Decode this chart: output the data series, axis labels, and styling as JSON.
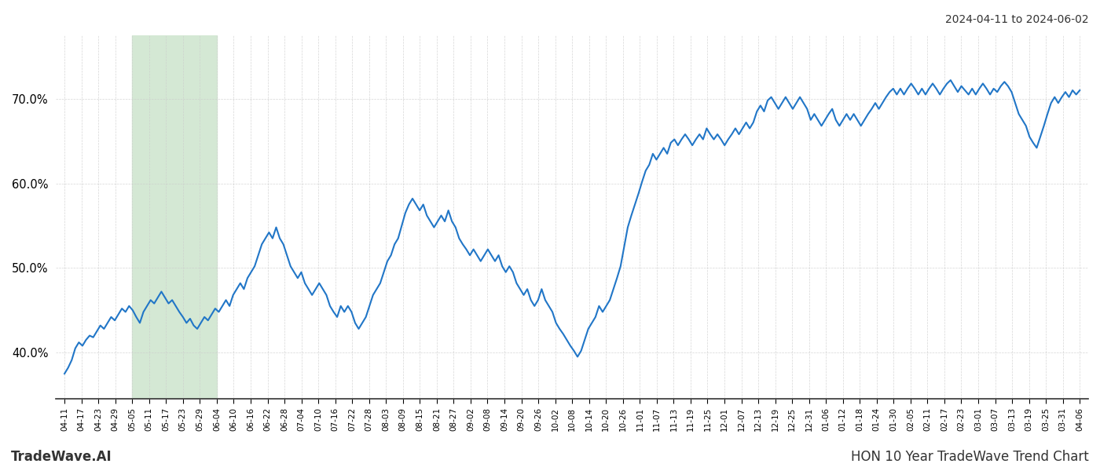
{
  "title_right": "2024-04-11 to 2024-06-02",
  "footer_left": "TradeWave.AI",
  "footer_right": "HON 10 Year TradeWave Trend Chart",
  "line_color": "#2176c7",
  "line_width": 1.5,
  "bg_color": "#ffffff",
  "grid_color": "#cccccc",
  "highlight_color": "#d4e8d4",
  "yticks": [
    0.4,
    0.5,
    0.6,
    0.7
  ],
  "ylim": [
    0.345,
    0.775
  ],
  "xlabels": [
    "04-11",
    "04-17",
    "04-23",
    "04-29",
    "05-05",
    "05-11",
    "05-17",
    "05-23",
    "05-29",
    "06-04",
    "06-10",
    "06-16",
    "06-22",
    "06-28",
    "07-04",
    "07-10",
    "07-16",
    "07-22",
    "07-28",
    "08-03",
    "08-09",
    "08-15",
    "08-21",
    "08-27",
    "09-02",
    "09-08",
    "09-14",
    "09-20",
    "09-26",
    "10-02",
    "10-08",
    "10-14",
    "10-20",
    "10-26",
    "11-01",
    "11-07",
    "11-13",
    "11-19",
    "11-25",
    "12-01",
    "12-07",
    "12-13",
    "12-19",
    "12-25",
    "12-31",
    "01-06",
    "01-12",
    "01-18",
    "01-24",
    "01-30",
    "02-05",
    "02-11",
    "02-17",
    "02-23",
    "03-01",
    "03-07",
    "03-13",
    "03-19",
    "03-25",
    "03-31",
    "04-06"
  ],
  "highlight_label_start": "05-05",
  "highlight_label_end": "06-04",
  "values": [
    37.5,
    38.2,
    39.1,
    40.5,
    41.2,
    40.8,
    41.5,
    42.0,
    41.8,
    42.5,
    43.2,
    42.8,
    43.5,
    44.2,
    43.8,
    44.5,
    45.2,
    44.8,
    45.5,
    45.0,
    44.2,
    43.5,
    44.8,
    45.5,
    46.2,
    45.8,
    46.5,
    47.2,
    46.5,
    45.8,
    46.2,
    45.5,
    44.8,
    44.2,
    43.5,
    44.0,
    43.2,
    42.8,
    43.5,
    44.2,
    43.8,
    44.5,
    45.2,
    44.8,
    45.5,
    46.2,
    45.5,
    46.8,
    47.5,
    48.2,
    47.5,
    48.8,
    49.5,
    50.2,
    51.5,
    52.8,
    53.5,
    54.2,
    53.5,
    54.8,
    53.5,
    52.8,
    51.5,
    50.2,
    49.5,
    48.8,
    49.5,
    48.2,
    47.5,
    46.8,
    47.5,
    48.2,
    47.5,
    46.8,
    45.5,
    44.8,
    44.2,
    45.5,
    44.8,
    45.5,
    44.8,
    43.5,
    42.8,
    43.5,
    44.2,
    45.5,
    46.8,
    47.5,
    48.2,
    49.5,
    50.8,
    51.5,
    52.8,
    53.5,
    55.0,
    56.5,
    57.5,
    58.2,
    57.5,
    56.8,
    57.5,
    56.2,
    55.5,
    54.8,
    55.5,
    56.2,
    55.5,
    56.8,
    55.5,
    54.8,
    53.5,
    52.8,
    52.2,
    51.5,
    52.2,
    51.5,
    50.8,
    51.5,
    52.2,
    51.5,
    50.8,
    51.5,
    50.2,
    49.5,
    50.2,
    49.5,
    48.2,
    47.5,
    46.8,
    47.5,
    46.2,
    45.5,
    46.2,
    47.5,
    46.2,
    45.5,
    44.8,
    43.5,
    42.8,
    42.2,
    41.5,
    40.8,
    40.2,
    39.5,
    40.2,
    41.5,
    42.8,
    43.5,
    44.2,
    45.5,
    44.8,
    45.5,
    46.2,
    47.5,
    48.8,
    50.2,
    52.5,
    54.8,
    56.2,
    57.5,
    58.8,
    60.2,
    61.5,
    62.2,
    63.5,
    62.8,
    63.5,
    64.2,
    63.5,
    64.8,
    65.2,
    64.5,
    65.2,
    65.8,
    65.2,
    64.5,
    65.2,
    65.8,
    65.2,
    66.5,
    65.8,
    65.2,
    65.8,
    65.2,
    64.5,
    65.2,
    65.8,
    66.5,
    65.8,
    66.5,
    67.2,
    66.5,
    67.2,
    68.5,
    69.2,
    68.5,
    69.8,
    70.2,
    69.5,
    68.8,
    69.5,
    70.2,
    69.5,
    68.8,
    69.5,
    70.2,
    69.5,
    68.8,
    67.5,
    68.2,
    67.5,
    66.8,
    67.5,
    68.2,
    68.8,
    67.5,
    66.8,
    67.5,
    68.2,
    67.5,
    68.2,
    67.5,
    66.8,
    67.5,
    68.2,
    68.8,
    69.5,
    68.8,
    69.5,
    70.2,
    70.8,
    71.2,
    70.5,
    71.2,
    70.5,
    71.2,
    71.8,
    71.2,
    70.5,
    71.2,
    70.5,
    71.2,
    71.8,
    71.2,
    70.5,
    71.2,
    71.8,
    72.2,
    71.5,
    70.8,
    71.5,
    71.0,
    70.5,
    71.2,
    70.5,
    71.2,
    71.8,
    71.2,
    70.5,
    71.2,
    70.8,
    71.5,
    72.0,
    71.5,
    70.8,
    69.5,
    68.2,
    67.5,
    66.8,
    65.5,
    64.8,
    64.2,
    65.5,
    66.8,
    68.2,
    69.5,
    70.2,
    69.5,
    70.2,
    70.8,
    70.2,
    71.0,
    70.5,
    71.0
  ]
}
